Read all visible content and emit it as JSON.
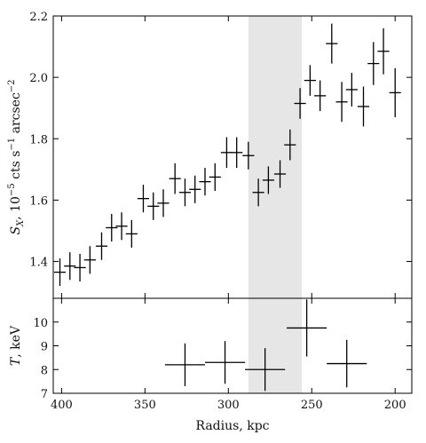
{
  "chart_data": {
    "type": "errorbar",
    "shared_x": {
      "label": "Radius, kpc",
      "lim": [
        405,
        190
      ],
      "ticks": [
        400,
        350,
        300,
        250,
        200
      ],
      "tick_labels": [
        "400",
        "350",
        "300",
        "250",
        "200"
      ],
      "inverted": true
    },
    "highlight_band": {
      "x": [
        288,
        256
      ],
      "color": "#e6e6e6"
    },
    "panels": [
      {
        "name": "surface-brightness",
        "ylabel": "S_X, 10^-5 cts s^-1 arcsec^-2",
        "ylabel_parts": {
          "symbol": "S",
          "sub": "X",
          "mid": ", 10",
          "exp1": "−5",
          "mid2": " cts s",
          "exp2": "−1",
          "mid3": " arcsec",
          "exp3": "−2"
        },
        "ylim": [
          1.28,
          2.2
        ],
        "yticks": [
          1.4,
          1.6,
          1.8,
          2.0,
          2.2
        ],
        "ytick_labels": [
          "1.4",
          "1.6",
          "1.8",
          "2.0",
          "2.2"
        ],
        "points": [
          {
            "x": 401,
            "y": 1.365,
            "xerr": 3.5,
            "yerr": 0.045
          },
          {
            "x": 395,
            "y": 1.385,
            "xerr": 3.5,
            "yerr": 0.045
          },
          {
            "x": 389,
            "y": 1.38,
            "xerr": 3.5,
            "yerr": 0.045
          },
          {
            "x": 383,
            "y": 1.405,
            "xerr": 3.5,
            "yerr": 0.045
          },
          {
            "x": 376,
            "y": 1.45,
            "xerr": 3.5,
            "yerr": 0.045
          },
          {
            "x": 370,
            "y": 1.51,
            "xerr": 3.5,
            "yerr": 0.045
          },
          {
            "x": 364,
            "y": 1.515,
            "xerr": 3.5,
            "yerr": 0.045
          },
          {
            "x": 358,
            "y": 1.49,
            "xerr": 3.5,
            "yerr": 0.045
          },
          {
            "x": 351,
            "y": 1.605,
            "xerr": 3.5,
            "yerr": 0.045
          },
          {
            "x": 345,
            "y": 1.58,
            "xerr": 3.5,
            "yerr": 0.045
          },
          {
            "x": 339,
            "y": 1.59,
            "xerr": 3.5,
            "yerr": 0.045
          },
          {
            "x": 332,
            "y": 1.67,
            "xerr": 3.5,
            "yerr": 0.05
          },
          {
            "x": 326,
            "y": 1.625,
            "xerr": 3.5,
            "yerr": 0.045
          },
          {
            "x": 320,
            "y": 1.635,
            "xerr": 3.5,
            "yerr": 0.045
          },
          {
            "x": 314,
            "y": 1.66,
            "xerr": 3.5,
            "yerr": 0.045
          },
          {
            "x": 308,
            "y": 1.675,
            "xerr": 3.5,
            "yerr": 0.045
          },
          {
            "x": 301,
            "y": 1.755,
            "xerr": 3.5,
            "yerr": 0.05
          },
          {
            "x": 295,
            "y": 1.755,
            "xerr": 3.5,
            "yerr": 0.05
          },
          {
            "x": 288,
            "y": 1.745,
            "xerr": 3.5,
            "yerr": 0.045
          },
          {
            "x": 282,
            "y": 1.625,
            "xerr": 3.5,
            "yerr": 0.045
          },
          {
            "x": 276,
            "y": 1.665,
            "xerr": 3.5,
            "yerr": 0.045
          },
          {
            "x": 269,
            "y": 1.685,
            "xerr": 3.5,
            "yerr": 0.045
          },
          {
            "x": 263,
            "y": 1.78,
            "xerr": 3.5,
            "yerr": 0.05
          },
          {
            "x": 257,
            "y": 1.915,
            "xerr": 3.5,
            "yerr": 0.05
          },
          {
            "x": 251,
            "y": 1.99,
            "xerr": 3.5,
            "yerr": 0.05
          },
          {
            "x": 245,
            "y": 1.94,
            "xerr": 3.5,
            "yerr": 0.05
          },
          {
            "x": 238,
            "y": 2.11,
            "xerr": 3.5,
            "yerr": 0.065
          },
          {
            "x": 232,
            "y": 1.92,
            "xerr": 3.5,
            "yerr": 0.065
          },
          {
            "x": 226,
            "y": 1.96,
            "xerr": 3.5,
            "yerr": 0.055
          },
          {
            "x": 219,
            "y": 1.905,
            "xerr": 3.5,
            "yerr": 0.065
          },
          {
            "x": 213,
            "y": 2.045,
            "xerr": 3.5,
            "yerr": 0.07
          },
          {
            "x": 207,
            "y": 2.085,
            "xerr": 3.5,
            "yerr": 0.075
          },
          {
            "x": 200,
            "y": 1.95,
            "xerr": 3.5,
            "yerr": 0.08
          }
        ]
      },
      {
        "name": "temperature",
        "ylabel": "T, keV",
        "ylabel_parts": {
          "symbol": "T",
          "rest": ", keV"
        },
        "ylim": [
          7,
          11
        ],
        "yticks": [
          7,
          8,
          9,
          10
        ],
        "ytick_labels": [
          "7",
          "8",
          "9",
          "10"
        ],
        "points": [
          {
            "x": 326,
            "y": 8.2,
            "xerr": 12,
            "yerr": 0.9
          },
          {
            "x": 302,
            "y": 8.3,
            "xerr": 12,
            "yerr": 0.9
          },
          {
            "x": 278,
            "y": 8.0,
            "xerr": 12,
            "yerr": 0.9
          },
          {
            "x": 253,
            "y": 9.75,
            "xerr": 12,
            "yerr": 1.2
          },
          {
            "x": 229,
            "y": 8.25,
            "xerr": 12,
            "yerr": 1.0
          }
        ]
      }
    ],
    "grid": false,
    "legend": null
  }
}
